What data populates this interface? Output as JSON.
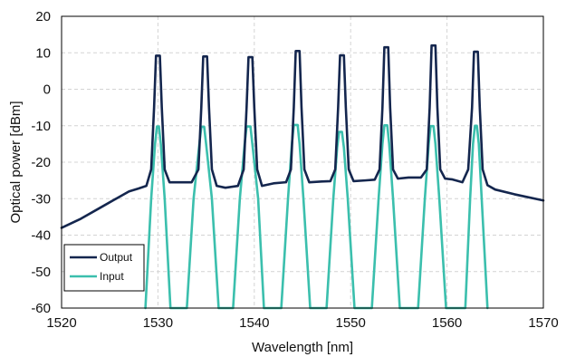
{
  "chart_data": {
    "type": "line",
    "title": "",
    "xlabel": "Wavelength [nm]",
    "ylabel": "Optical power [dBm]",
    "xlim": [
      1520,
      1570
    ],
    "ylim": [
      -60,
      20
    ],
    "xticks": [
      1520,
      1530,
      1540,
      1550,
      1560,
      1570
    ],
    "yticks": [
      20,
      10,
      0,
      -10,
      -20,
      -30,
      -40,
      -50,
      -60
    ],
    "grid": true,
    "legend_position": "bottom-left",
    "series": [
      {
        "name": "Output",
        "color": "#14264e",
        "x": [
          1520,
          1522,
          1524,
          1526,
          1527,
          1528,
          1528.8,
          1529.3,
          1529.6,
          1529.8,
          1530.2,
          1530.4,
          1530.7,
          1531.2,
          1532,
          1533.5,
          1534.2,
          1534.5,
          1534.7,
          1535.1,
          1535.3,
          1535.6,
          1536.1,
          1537,
          1538.3,
          1538.9,
          1539.2,
          1539.4,
          1539.8,
          1540.0,
          1540.3,
          1540.8,
          1542,
          1543.3,
          1543.8,
          1544.1,
          1544.3,
          1544.7,
          1544.9,
          1545.2,
          1545.7,
          1547,
          1547.9,
          1548.4,
          1548.7,
          1548.9,
          1549.3,
          1549.5,
          1549.8,
          1550.3,
          1551.5,
          1552.5,
          1553.0,
          1553.3,
          1553.5,
          1553.9,
          1554.1,
          1554.4,
          1554.9,
          1556,
          1557.3,
          1557.9,
          1558.2,
          1558.4,
          1558.8,
          1559.0,
          1559.3,
          1559.8,
          1560.5,
          1561.6,
          1562.2,
          1562.6,
          1562.8,
          1563.2,
          1563.4,
          1563.7,
          1564.2,
          1565,
          1567,
          1570
        ],
        "y": [
          -38,
          -35.5,
          -32.5,
          -29.5,
          -28,
          -27.2,
          -26.5,
          -22,
          -5,
          9.2,
          9.2,
          -5,
          -22,
          -25.5,
          -25.5,
          -25.5,
          -22,
          -5,
          9.0,
          9.0,
          -5,
          -22,
          -26.5,
          -27,
          -26.5,
          -22,
          -5,
          8.8,
          8.8,
          -5,
          -22,
          -26.5,
          -25.8,
          -25.5,
          -22,
          -5,
          10.5,
          10.5,
          -5,
          -22,
          -25.5,
          -25.3,
          -25.2,
          -22,
          -5,
          9.3,
          9.3,
          -5,
          -22,
          -25.2,
          -25,
          -24.8,
          -22,
          -5,
          11.5,
          11.5,
          -5,
          -22,
          -24.5,
          -24.2,
          -24.2,
          -22,
          -5,
          12.0,
          12.0,
          -5,
          -22,
          -24.5,
          -24.7,
          -25.5,
          -22,
          -5,
          10.3,
          10.3,
          -5,
          -22,
          -26.3,
          -27.5,
          -28.8,
          -30.5
        ]
      },
      {
        "name": "Input",
        "color": "#3bbfad",
        "x": [
          1528.7,
          1529.3,
          1529.7,
          1529.9,
          1530.1,
          1530.3,
          1530.7,
          1531.3,
          1533.0,
          1533.7,
          1534.3,
          1534.5,
          1534.8,
          1535.0,
          1535.6,
          1536.3,
          1537.8,
          1538.5,
          1539.0,
          1539.2,
          1539.6,
          1539.8,
          1540.4,
          1541.0,
          1542.8,
          1543.5,
          1543.9,
          1544.1,
          1544.5,
          1544.7,
          1545.1,
          1545.8,
          1547.5,
          1548.2,
          1548.6,
          1548.8,
          1549.1,
          1549.3,
          1549.7,
          1550.4,
          1552.2,
          1552.9,
          1553.3,
          1553.5,
          1553.8,
          1554.0,
          1554.4,
          1555.1,
          1557.0,
          1557.7,
          1558.1,
          1558.3,
          1558.6,
          1558.8,
          1559.2,
          1559.9,
          1561.9,
          1562.4,
          1562.7,
          1562.9,
          1563.1,
          1563.3,
          1563.6,
          1564.2
        ],
        "y": [
          -60,
          -30,
          -15,
          -10.2,
          -10.2,
          -15,
          -30,
          -60,
          -60,
          -30,
          -15,
          -10.3,
          -10.3,
          -15,
          -30,
          -60,
          -60,
          -30,
          -15,
          -10.2,
          -10.2,
          -15,
          -30,
          -60,
          -60,
          -30,
          -15,
          -9.8,
          -9.8,
          -15,
          -30,
          -60,
          -60,
          -30,
          -16,
          -11.7,
          -11.7,
          -16,
          -30,
          -60,
          -60,
          -30,
          -15,
          -9.9,
          -9.9,
          -15,
          -30,
          -60,
          -60,
          -30,
          -15,
          -10.1,
          -10.1,
          -15,
          -30,
          -60,
          -60,
          -30,
          -15,
          -10.0,
          -10.0,
          -15,
          -30,
          -60
        ]
      }
    ]
  }
}
